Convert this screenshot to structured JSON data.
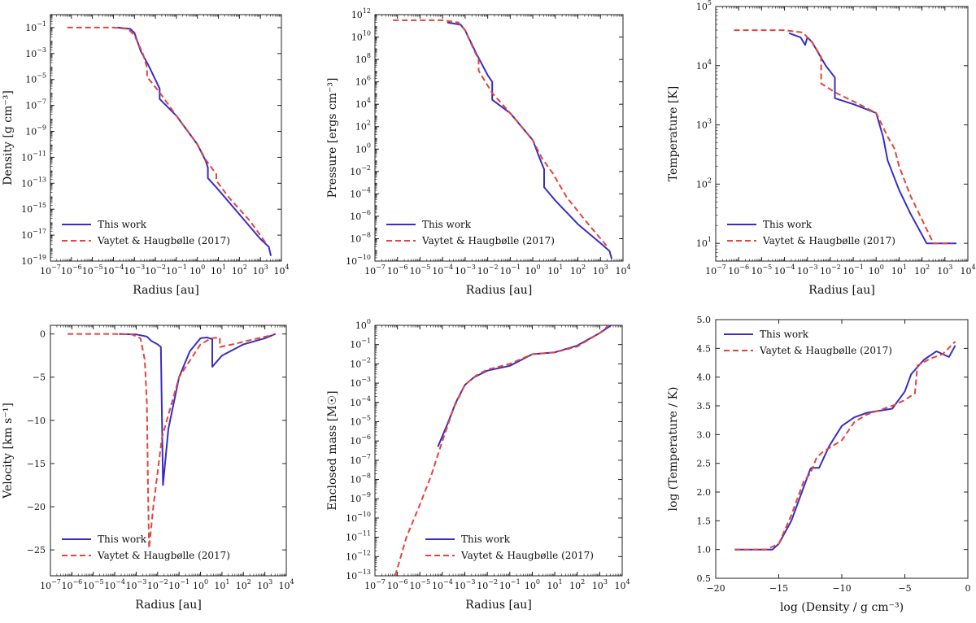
{
  "colors": {
    "this_work": "#3b2cc4",
    "vaytet": "#e2453a",
    "axes": "#222222"
  },
  "chart_data": [
    {
      "id": "density",
      "type": "line",
      "xlabel": "Radius [au]",
      "ylabel": "Density [g cm⁻³]",
      "xscale": "log",
      "yscale": "log",
      "xlim": [
        -7,
        4
      ],
      "ylim": [
        -19,
        0
      ],
      "xticks": [
        -7,
        -6,
        -5,
        -4,
        -3,
        -2,
        -1,
        0,
        1,
        2,
        3,
        4
      ],
      "yticks": [
        -19,
        -17,
        -15,
        -13,
        -11,
        -9,
        -7,
        -5,
        -3,
        -1
      ],
      "legend_position": "lower-left",
      "series": [
        {
          "name": "This work",
          "style": "solid",
          "x": [
            -3.8,
            -3.2,
            -3.0,
            -2.7,
            -2.3,
            -1.8,
            -1.8,
            -1.0,
            0.0,
            0.4,
            0.5,
            0.5,
            1.0,
            2.0,
            3.0,
            3.4,
            3.5
          ],
          "y": [
            -1.0,
            -1.1,
            -1.4,
            -2.8,
            -4.0,
            -5.7,
            -6.5,
            -7.8,
            -10.0,
            -11.3,
            -11.8,
            -12.6,
            -13.5,
            -15.4,
            -17.3,
            -17.9,
            -18.6
          ]
        },
        {
          "name": "Vaytet & Haugbølle (2017)",
          "style": "dashed",
          "x": [
            -6.2,
            -5.0,
            -4.0,
            -3.3,
            -3.0,
            -2.6,
            -2.4,
            -2.4,
            -1.8,
            -1.0,
            0.0,
            0.4,
            0.9,
            0.9,
            1.5,
            2.5,
            3.3
          ],
          "y": [
            -1.0,
            -1.0,
            -1.0,
            -1.1,
            -1.6,
            -3.0,
            -4.1,
            -4.8,
            -6.0,
            -7.8,
            -10.0,
            -11.2,
            -12.3,
            -12.8,
            -14.1,
            -15.9,
            -17.7
          ]
        }
      ]
    },
    {
      "id": "pressure",
      "type": "line",
      "xlabel": "Radius [au]",
      "ylabel": "Pressure [ergs cm⁻³]",
      "xscale": "log",
      "yscale": "log",
      "xlim": [
        -7,
        4
      ],
      "ylim": [
        -10,
        12
      ],
      "xticks": [
        -7,
        -6,
        -5,
        -4,
        -3,
        -2,
        -1,
        0,
        1,
        2,
        3,
        4
      ],
      "yticks": [
        -10,
        -8,
        -6,
        -4,
        -2,
        0,
        2,
        4,
        6,
        8,
        10,
        12
      ],
      "legend_position": "lower-left",
      "series": [
        {
          "name": "This work",
          "style": "solid",
          "x": [
            -3.8,
            -3.2,
            -3.0,
            -2.5,
            -2.0,
            -1.8,
            -1.8,
            -1.0,
            0.0,
            0.3,
            0.5,
            0.5,
            1.0,
            2.0,
            3.0,
            3.4,
            3.5
          ],
          "y": [
            11.3,
            11.1,
            10.6,
            8.5,
            6.6,
            6.0,
            4.4,
            3.2,
            0.8,
            -0.8,
            -1.8,
            -3.4,
            -4.6,
            -6.7,
            -8.4,
            -9.1,
            -9.8
          ]
        },
        {
          "name": "Vaytet & Haugbølle (2017)",
          "style": "dashed",
          "x": [
            -6.2,
            -5.0,
            -4.0,
            -3.3,
            -3.0,
            -2.6,
            -2.4,
            -2.4,
            -1.8,
            -1.0,
            0.0,
            0.4,
            0.9,
            1.5,
            2.5,
            3.3
          ],
          "y": [
            11.5,
            11.5,
            11.5,
            11.3,
            10.6,
            8.8,
            8.0,
            7.0,
            5.0,
            3.2,
            0.8,
            -0.8,
            -2.2,
            -4.3,
            -6.8,
            -8.7
          ]
        }
      ]
    },
    {
      "id": "temperature",
      "type": "line",
      "xlabel": "Radius [au]",
      "ylabel": "Temperature [K]",
      "xscale": "log",
      "yscale": "log",
      "xlim": [
        -7,
        4
      ],
      "ylim": [
        0.7,
        5
      ],
      "xticks": [
        -7,
        -6,
        -5,
        -4,
        -3,
        -2,
        -1,
        0,
        1,
        2,
        3,
        4
      ],
      "yticks": [
        1,
        2,
        3,
        4,
        5
      ],
      "legend_position": "lower-left",
      "series": [
        {
          "name": "This work",
          "style": "solid",
          "x": [
            -3.8,
            -3.3,
            -3.1,
            -3.0,
            -2.8,
            -2.5,
            -2.2,
            -1.8,
            -1.8,
            -1.0,
            0.0,
            0.3,
            0.5,
            1.0,
            1.5,
            2.2,
            3.5
          ],
          "y": [
            4.55,
            4.48,
            4.35,
            4.48,
            4.4,
            4.2,
            4.0,
            3.8,
            3.45,
            3.35,
            3.2,
            2.8,
            2.4,
            1.9,
            1.5,
            1.0,
            1.0
          ]
        },
        {
          "name": "Vaytet & Haugbølle (2017)",
          "style": "dashed",
          "x": [
            -6.2,
            -5.0,
            -4.0,
            -3.2,
            -2.8,
            -2.4,
            -2.4,
            -1.8,
            -1.0,
            0.0,
            0.5,
            0.8,
            1.0,
            1.5,
            2.5,
            3.3
          ],
          "y": [
            4.6,
            4.6,
            4.6,
            4.56,
            4.4,
            4.15,
            3.7,
            3.55,
            3.4,
            3.2,
            2.8,
            2.6,
            2.3,
            1.8,
            1.0,
            1.0
          ]
        }
      ]
    },
    {
      "id": "velocity",
      "type": "line",
      "xlabel": "Radius [au]",
      "ylabel": "Velocity [km s⁻¹]",
      "xscale": "log",
      "yscale": "linear",
      "xlim": [
        -7,
        4
      ],
      "ylim": [
        -28,
        1
      ],
      "xticks": [
        -7,
        -6,
        -5,
        -4,
        -3,
        -2,
        -1,
        0,
        1,
        2,
        3,
        4
      ],
      "yticks": [
        -25,
        -20,
        -15,
        -10,
        -5,
        0
      ],
      "legend_position": "lower-left",
      "series": [
        {
          "name": "This work",
          "style": "solid",
          "x": [
            -3.8,
            -3.0,
            -2.5,
            -2.3,
            -2.0,
            -1.85,
            -1.75,
            -1.5,
            -1.0,
            -0.5,
            0.0,
            0.3,
            0.55,
            0.55,
            1.0,
            2.0,
            3.0,
            3.5
          ],
          "y": [
            0,
            -0.05,
            -0.3,
            -0.8,
            -1.2,
            -1.5,
            -17.5,
            -11,
            -5,
            -2,
            -0.5,
            -0.4,
            -0.6,
            -3.8,
            -2.5,
            -1.2,
            -0.5,
            0
          ]
        },
        {
          "name": "Vaytet & Haugbølle (2017)",
          "style": "dashed",
          "x": [
            -6.2,
            -4.0,
            -3.2,
            -2.8,
            -2.6,
            -2.5,
            -2.45,
            -2.4,
            -2.2,
            -1.8,
            -1.0,
            0.0,
            0.5,
            0.9,
            0.9,
            1.5,
            2.5,
            3.4
          ],
          "y": [
            0,
            0,
            -0.05,
            -0.5,
            -3,
            -8,
            -18,
            -24.8,
            -20,
            -12,
            -5,
            -1.2,
            -0.5,
            -0.4,
            -1.5,
            -1.2,
            -0.6,
            -0.1
          ]
        }
      ]
    },
    {
      "id": "enclosed_mass",
      "type": "line",
      "xlabel": "Radius [au]",
      "ylabel": "Enclosed mass [M☉]",
      "xscale": "log",
      "yscale": "log",
      "xlim": [
        -7,
        4
      ],
      "ylim": [
        -13,
        0
      ],
      "xticks": [
        -7,
        -6,
        -5,
        -4,
        -3,
        -2,
        -1,
        0,
        1,
        2,
        3,
        4
      ],
      "yticks": [
        -13,
        -12,
        -11,
        -10,
        -9,
        -8,
        -7,
        -6,
        -5,
        -4,
        -3,
        -2,
        -1,
        0
      ],
      "legend_position": "lower-right",
      "series": [
        {
          "name": "This work",
          "style": "solid",
          "x": [
            -4.2,
            -3.8,
            -3.4,
            -3.0,
            -2.6,
            -2.0,
            -1.0,
            0.0,
            1.0,
            2.0,
            3.0,
            3.5
          ],
          "y": [
            -6.3,
            -5.2,
            -4.0,
            -3.1,
            -2.7,
            -2.35,
            -2.1,
            -1.5,
            -1.4,
            -1.05,
            -0.4,
            0.0
          ]
        },
        {
          "name": "Vaytet & Haugbølle (2017)",
          "style": "dashed",
          "x": [
            -6.1,
            -5.6,
            -5.0,
            -4.5,
            -4.0,
            -3.5,
            -3.0,
            -2.5,
            -2.0,
            -1.0,
            0.0,
            1.0,
            2.0,
            3.0,
            3.4
          ],
          "y": [
            -13.0,
            -11.0,
            -9.3,
            -7.8,
            -6.0,
            -4.3,
            -3.1,
            -2.6,
            -2.3,
            -2.0,
            -1.5,
            -1.4,
            -1.1,
            -0.4,
            0.0
          ]
        }
      ]
    },
    {
      "id": "temp_density",
      "type": "line",
      "xlabel": "log (Density / g cm⁻³)",
      "ylabel": "log (Temperature / K)",
      "xscale": "linear",
      "yscale": "linear",
      "xlim": [
        -20,
        0
      ],
      "ylim": [
        0.5,
        5.0
      ],
      "xticks": [
        -20,
        -15,
        -10,
        -5,
        0
      ],
      "yticks": [
        0.5,
        1.0,
        1.5,
        2.0,
        2.5,
        3.0,
        3.5,
        4.0,
        4.5,
        5.0
      ],
      "legend_position": "upper-left",
      "series": [
        {
          "name": "This work",
          "style": "solid",
          "x": [
            -18.5,
            -17,
            -15.5,
            -15,
            -14,
            -13,
            -12.5,
            -12.4,
            -11.8,
            -11,
            -10,
            -9,
            -8,
            -6,
            -5,
            -4.5,
            -3.5,
            -2.5,
            -2,
            -1.5,
            -1
          ],
          "y": [
            1.0,
            1.0,
            1.0,
            1.1,
            1.5,
            2.1,
            2.4,
            2.42,
            2.42,
            2.8,
            3.15,
            3.3,
            3.38,
            3.45,
            3.75,
            4.05,
            4.3,
            4.45,
            4.4,
            4.35,
            4.55
          ]
        },
        {
          "name": "Vaytet & Haugbølle (2017)",
          "style": "dashed",
          "x": [
            -18.5,
            -16,
            -15,
            -14,
            -13,
            -12.5,
            -12,
            -11.5,
            -10,
            -9,
            -8,
            -6,
            -5,
            -4.2,
            -4,
            -3,
            -2,
            -1
          ],
          "y": [
            1.0,
            1.0,
            1.1,
            1.6,
            2.2,
            2.32,
            2.6,
            2.7,
            2.9,
            3.22,
            3.35,
            3.5,
            3.6,
            3.72,
            4.2,
            4.32,
            4.4,
            4.62
          ]
        }
      ]
    }
  ]
}
